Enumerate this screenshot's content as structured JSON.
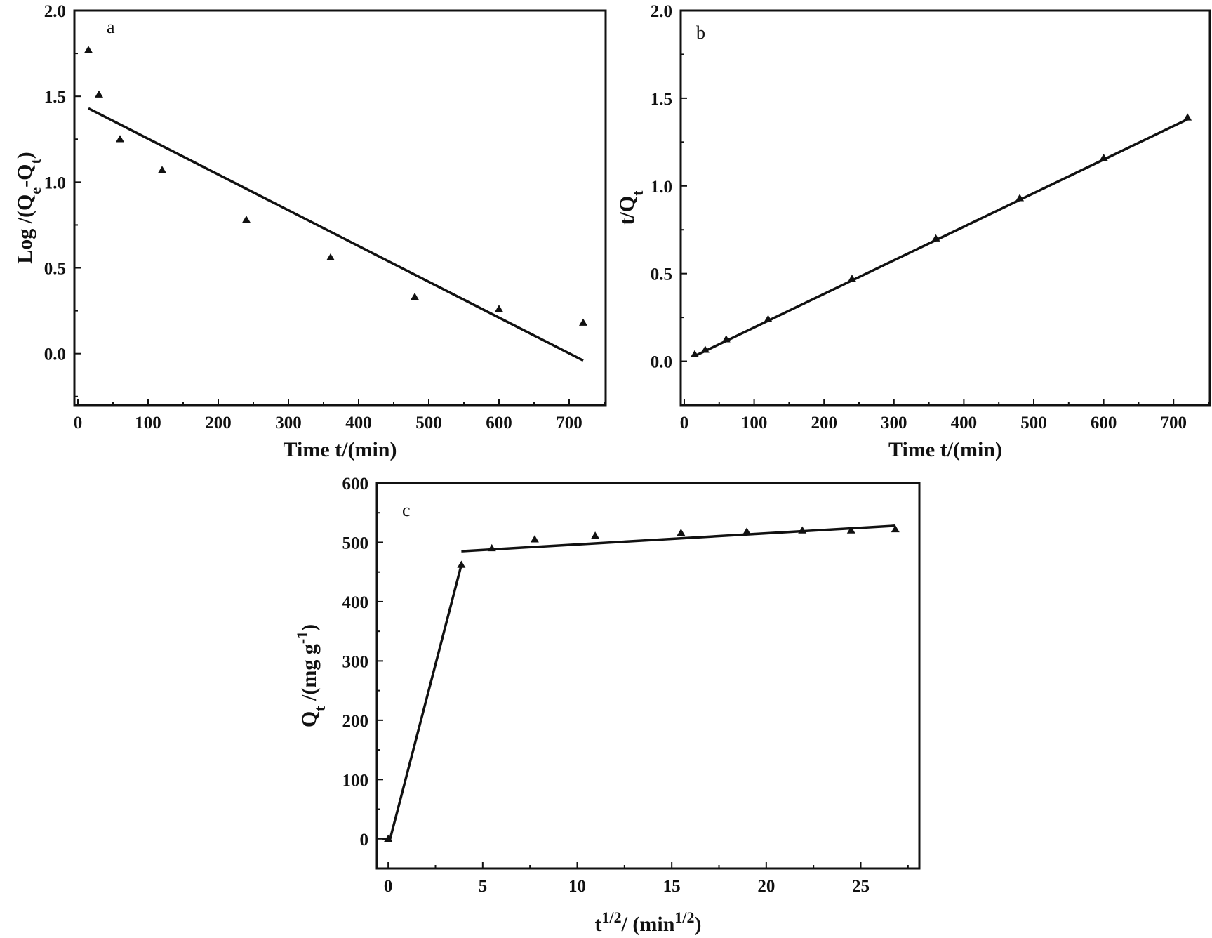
{
  "chart_data": [
    {
      "id": "a",
      "type": "scatter",
      "panel_label": "a",
      "xlabel": "Time t/(min)",
      "ylabel": "Log /(Qe-Qt)",
      "xlim": [
        -5,
        752
      ],
      "ylim": [
        -0.3,
        2.0
      ],
      "xticks": [
        0,
        100,
        200,
        300,
        400,
        500,
        600,
        700
      ],
      "xtick_labels": [
        "0",
        "100",
        "200",
        "300",
        "400",
        "500",
        "600",
        "700"
      ],
      "yticks": [
        0.0,
        0.5,
        1.0,
        1.5,
        2.0
      ],
      "ytick_labels": [
        "0.0",
        "0.5",
        "1.0",
        "1.5",
        "2.0"
      ],
      "points": [
        {
          "x": 15,
          "y": 1.77
        },
        {
          "x": 30,
          "y": 1.51
        },
        {
          "x": 60,
          "y": 1.25
        },
        {
          "x": 120,
          "y": 1.07
        },
        {
          "x": 240,
          "y": 0.78
        },
        {
          "x": 360,
          "y": 0.56
        },
        {
          "x": 480,
          "y": 0.33
        },
        {
          "x": 600,
          "y": 0.26
        },
        {
          "x": 720,
          "y": 0.18
        }
      ],
      "fit_lines": [
        {
          "x": [
            15,
            720
          ],
          "y": [
            1.43,
            -0.04
          ]
        }
      ]
    },
    {
      "id": "b",
      "type": "scatter",
      "panel_label": "b",
      "xlabel": "Time t/(min)",
      "ylabel": "t/Qt",
      "xlim": [
        -5,
        752
      ],
      "ylim": [
        -0.25,
        2.0
      ],
      "xticks": [
        0,
        100,
        200,
        300,
        400,
        500,
        600,
        700
      ],
      "xtick_labels": [
        "0",
        "100",
        "200",
        "300",
        "400",
        "500",
        "600",
        "700"
      ],
      "yticks": [
        0.0,
        0.5,
        1.0,
        1.5,
        2.0
      ],
      "ytick_labels": [
        "0.0",
        "0.5",
        "1.0",
        "1.5",
        "2.0"
      ],
      "points": [
        {
          "x": 15,
          "y": 0.04
        },
        {
          "x": 30,
          "y": 0.065
        },
        {
          "x": 60,
          "y": 0.125
        },
        {
          "x": 120,
          "y": 0.24
        },
        {
          "x": 240,
          "y": 0.47
        },
        {
          "x": 360,
          "y": 0.7
        },
        {
          "x": 480,
          "y": 0.93
        },
        {
          "x": 600,
          "y": 1.16
        },
        {
          "x": 720,
          "y": 1.39
        }
      ],
      "fit_lines": [
        {
          "x": [
            15,
            720
          ],
          "y": [
            0.03,
            1.38
          ]
        }
      ]
    },
    {
      "id": "c",
      "type": "scatter",
      "panel_label": "c",
      "xlabel": "t1/2/ (min1/2)",
      "ylabel": "Qt /(mg g-1)",
      "xlim": [
        -0.6,
        28.1
      ],
      "ylim": [
        -50,
        600
      ],
      "xticks": [
        0,
        5,
        10,
        15,
        20,
        25
      ],
      "xtick_labels": [
        "0",
        "5",
        "10",
        "15",
        "20",
        "25"
      ],
      "yticks": [
        0,
        100,
        200,
        300,
        400,
        500,
        600
      ],
      "ytick_labels": [
        "0",
        "100",
        "200",
        "300",
        "400",
        "500",
        "600"
      ],
      "points": [
        {
          "x": 0,
          "y": 0
        },
        {
          "x": 3.87,
          "y": 462
        },
        {
          "x": 5.48,
          "y": 490
        },
        {
          "x": 7.75,
          "y": 505
        },
        {
          "x": 10.95,
          "y": 511
        },
        {
          "x": 15.49,
          "y": 516
        },
        {
          "x": 18.97,
          "y": 518
        },
        {
          "x": 21.91,
          "y": 520
        },
        {
          "x": 24.49,
          "y": 520
        },
        {
          "x": 26.83,
          "y": 522
        }
      ],
      "fit_lines": [
        {
          "x": [
            -0.3,
            0.1,
            3.87
          ],
          "y": [
            0,
            0,
            462
          ]
        },
        {
          "x": [
            3.87,
            26.83
          ],
          "y": [
            485,
            528
          ]
        }
      ]
    }
  ]
}
